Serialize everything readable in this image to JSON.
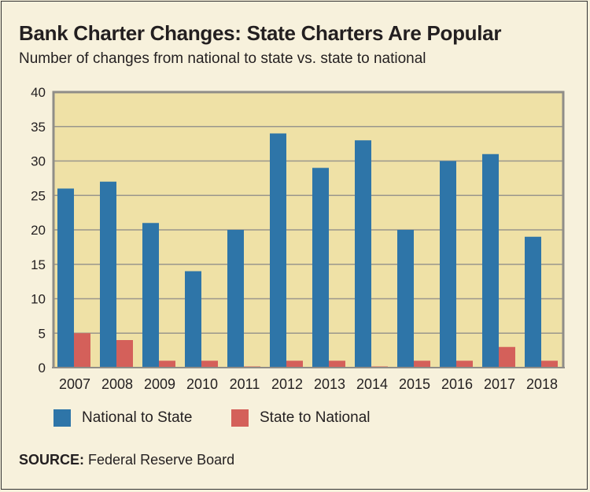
{
  "chart_data": {
    "type": "bar",
    "title": "Bank Charter Changes: State Charters Are Popular",
    "subtitle": "Number of changes from national to state vs. state to national",
    "categories": [
      "2007",
      "2008",
      "2009",
      "2010",
      "2011",
      "2012",
      "2013",
      "2014",
      "2015",
      "2016",
      "2017",
      "2018"
    ],
    "series": [
      {
        "name": "National to State",
        "color": "#2e75a8",
        "values": [
          26,
          27,
          21,
          14,
          20,
          34,
          29,
          33,
          20,
          30,
          31,
          19
        ]
      },
      {
        "name": "State to National",
        "color": "#d4605a",
        "values": [
          5,
          4,
          1,
          1,
          0,
          1,
          1,
          0,
          1,
          1,
          3,
          1
        ]
      }
    ],
    "ylim": [
      0,
      40
    ],
    "yticks": [
      0,
      5,
      10,
      15,
      20,
      25,
      30,
      35,
      40
    ],
    "grid": true,
    "legend": "bottom",
    "plot_background": "#efe1a6",
    "source_label": "SOURCE:",
    "source_text": "Federal Reserve Board"
  }
}
